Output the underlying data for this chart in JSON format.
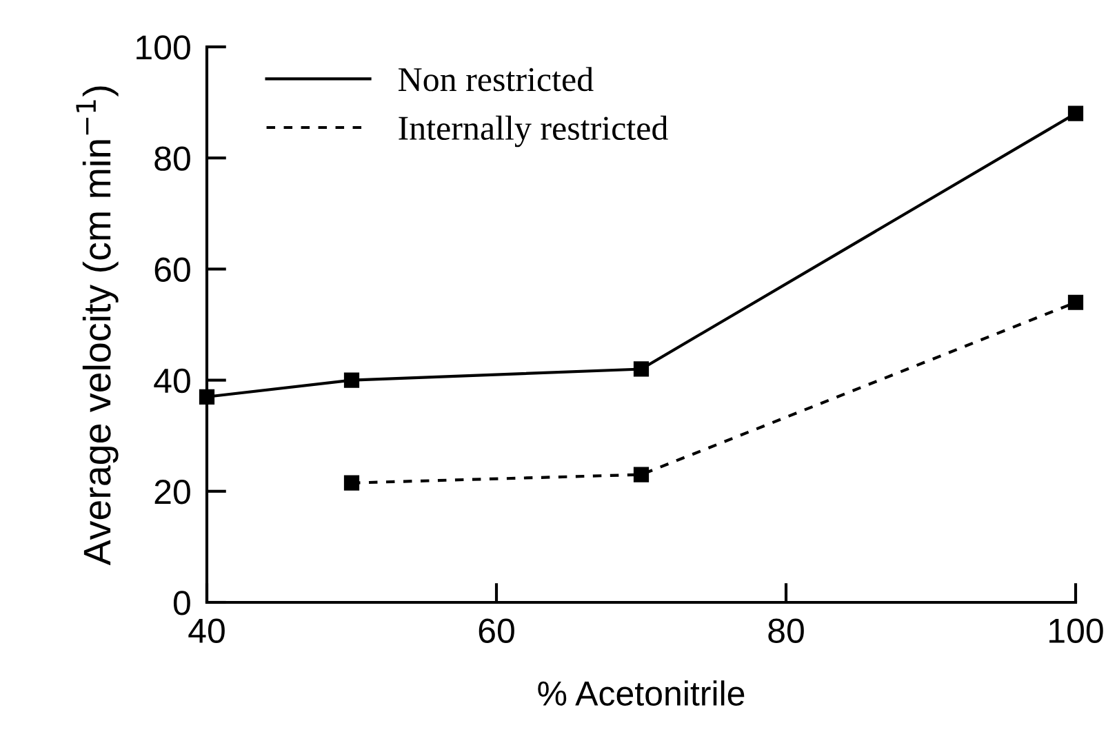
{
  "chart_data": {
    "type": "line",
    "xlabel": "% Acetonitrile",
    "ylabel": "Average velocity (cm min$^{−1}$)",
    "xlim": [
      40,
      100
    ],
    "ylim": [
      0,
      100
    ],
    "xticks": [
      40,
      60,
      80,
      100
    ],
    "yticks": [
      0,
      20,
      40,
      60,
      80,
      100
    ],
    "marker": "square",
    "grid": false,
    "legend": "top",
    "series": [
      {
        "name": "Non restricted",
        "color": "#000000",
        "line_style": "solid",
        "x": [
          40,
          50,
          70,
          100
        ],
        "values": [
          37,
          40,
          42,
          88
        ]
      },
      {
        "name": "Internally restricted",
        "color": "#000000",
        "line_style": "dashed",
        "x": [
          50,
          70,
          100
        ],
        "values": [
          21.5,
          23,
          54
        ]
      }
    ]
  }
}
